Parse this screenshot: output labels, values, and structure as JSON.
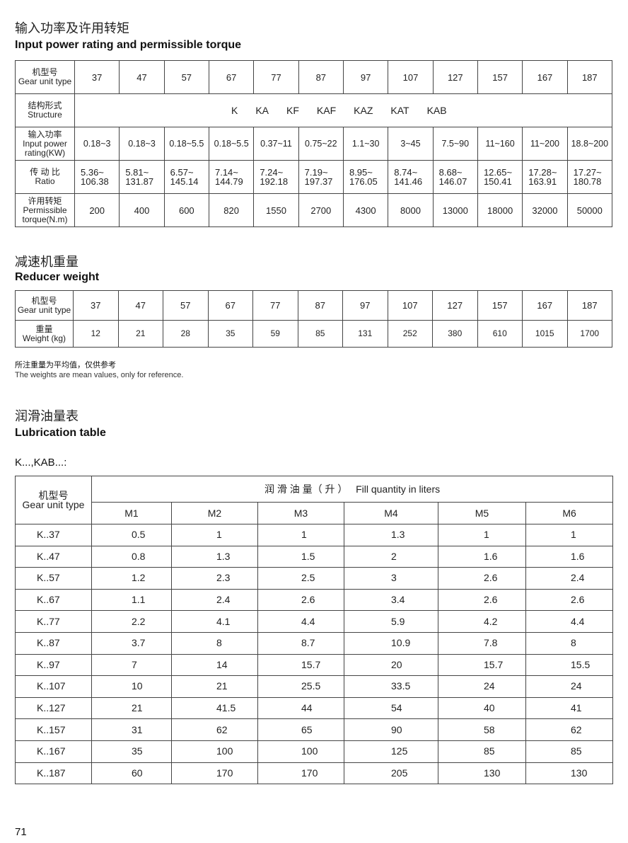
{
  "section1": {
    "title_zh": "输入功率及许用转矩",
    "title_en": "Input power rating and permissible torque",
    "row_labels": [
      {
        "zh": "机型号",
        "en": "Gear unit type"
      },
      {
        "zh": "结构形式",
        "en": "Structure"
      },
      {
        "zh": "输入功率",
        "en": "Input power rating(KW)"
      },
      {
        "zh": "传 动 比",
        "en": "Ratio"
      },
      {
        "zh": "许用转矩",
        "en": "Permissible torque(N.m)"
      }
    ],
    "types": [
      "37",
      "47",
      "57",
      "67",
      "77",
      "87",
      "97",
      "107",
      "127",
      "157",
      "167",
      "187"
    ],
    "structures": [
      "K",
      "KA",
      "KF",
      "KAF",
      "KAZ",
      "KAT",
      "KAB"
    ],
    "power": [
      "0.18~3",
      "0.18~3",
      "0.18~5.5",
      "0.18~5.5",
      "0.37~11",
      "0.75~22",
      "1.1~30",
      "3~45",
      "7.5~90",
      "11~160",
      "11~200",
      "18.8~200"
    ],
    "ratio": [
      [
        "5.36~",
        "106.38"
      ],
      [
        "5.81~",
        "131.87"
      ],
      [
        "6.57~",
        "145.14"
      ],
      [
        "7.14~",
        "144.79"
      ],
      [
        "7.24~",
        "192.18"
      ],
      [
        "7.19~",
        "197.37"
      ],
      [
        "8.95~",
        "176.05"
      ],
      [
        "8.74~",
        "141.46"
      ],
      [
        "8.68~",
        "146.07"
      ],
      [
        "12.65~",
        "150.41"
      ],
      [
        "17.28~",
        "163.91"
      ],
      [
        "17.27~",
        "180.78"
      ]
    ],
    "torque": [
      "200",
      "400",
      "600",
      "820",
      "1550",
      "2700",
      "4300",
      "8000",
      "13000",
      "18000",
      "32000",
      "50000"
    ]
  },
  "section2": {
    "title_zh": "减速机重量",
    "title_en": "Reducer weight",
    "row_labels": [
      {
        "zh": "机型号",
        "en": "Gear unit type"
      },
      {
        "zh": "重量",
        "en": "Weight (kg)"
      }
    ],
    "types": [
      "37",
      "47",
      "57",
      "67",
      "77",
      "87",
      "97",
      "107",
      "127",
      "157",
      "167",
      "187"
    ],
    "weights": [
      "12",
      "21",
      "28",
      "35",
      "59",
      "85",
      "131",
      "252",
      "380",
      "610",
      "1015",
      "1700"
    ],
    "note_zh": "所注重量为平均值，仅供参考",
    "note_en": "The weights are mean values, only for reference."
  },
  "section3": {
    "title_zh": "润滑油量表",
    "title_en": "Lubrication table",
    "subtitle": "K...,KAB...:",
    "type_header_zh": "机型号",
    "type_header_en": "Gear unit type",
    "fill_header": "润 滑 油 量（ 升 ）   Fill quantity in liters",
    "positions": [
      "M1",
      "M2",
      "M3",
      "M4",
      "M5",
      "M6"
    ],
    "rows": [
      {
        "type": "K..37",
        "values": [
          "0.5",
          "1",
          "1",
          "1.3",
          "1",
          "1"
        ]
      },
      {
        "type": "K..47",
        "values": [
          "0.8",
          "1.3",
          "1.5",
          "2",
          "1.6",
          "1.6"
        ]
      },
      {
        "type": "K..57",
        "values": [
          "1.2",
          "2.3",
          "2.5",
          "3",
          "2.6",
          "2.4"
        ]
      },
      {
        "type": "K..67",
        "values": [
          "1.1",
          "2.4",
          "2.6",
          "3.4",
          "2.6",
          "2.6"
        ]
      },
      {
        "type": "K..77",
        "values": [
          "2.2",
          "4.1",
          "4.4",
          "5.9",
          "4.2",
          "4.4"
        ]
      },
      {
        "type": "K..87",
        "values": [
          "3.7",
          "8",
          "8.7",
          "10.9",
          "7.8",
          "8"
        ]
      },
      {
        "type": "K..97",
        "values": [
          "7",
          "14",
          "15.7",
          "20",
          "15.7",
          "15.5"
        ]
      },
      {
        "type": "K..107",
        "values": [
          "10",
          "21",
          "25.5",
          "33.5",
          "24",
          "24"
        ]
      },
      {
        "type": "K..127",
        "values": [
          "21",
          "41.5",
          "44",
          "54",
          "40",
          "41"
        ]
      },
      {
        "type": "K..157",
        "values": [
          "31",
          "62",
          "65",
          "90",
          "58",
          "62"
        ]
      },
      {
        "type": "K..167",
        "values": [
          "35",
          "100",
          "100",
          "125",
          "85",
          "85"
        ]
      },
      {
        "type": "K..187",
        "values": [
          "60",
          "170",
          "170",
          "205",
          "130",
          "130"
        ]
      }
    ]
  },
  "page_number": "71"
}
